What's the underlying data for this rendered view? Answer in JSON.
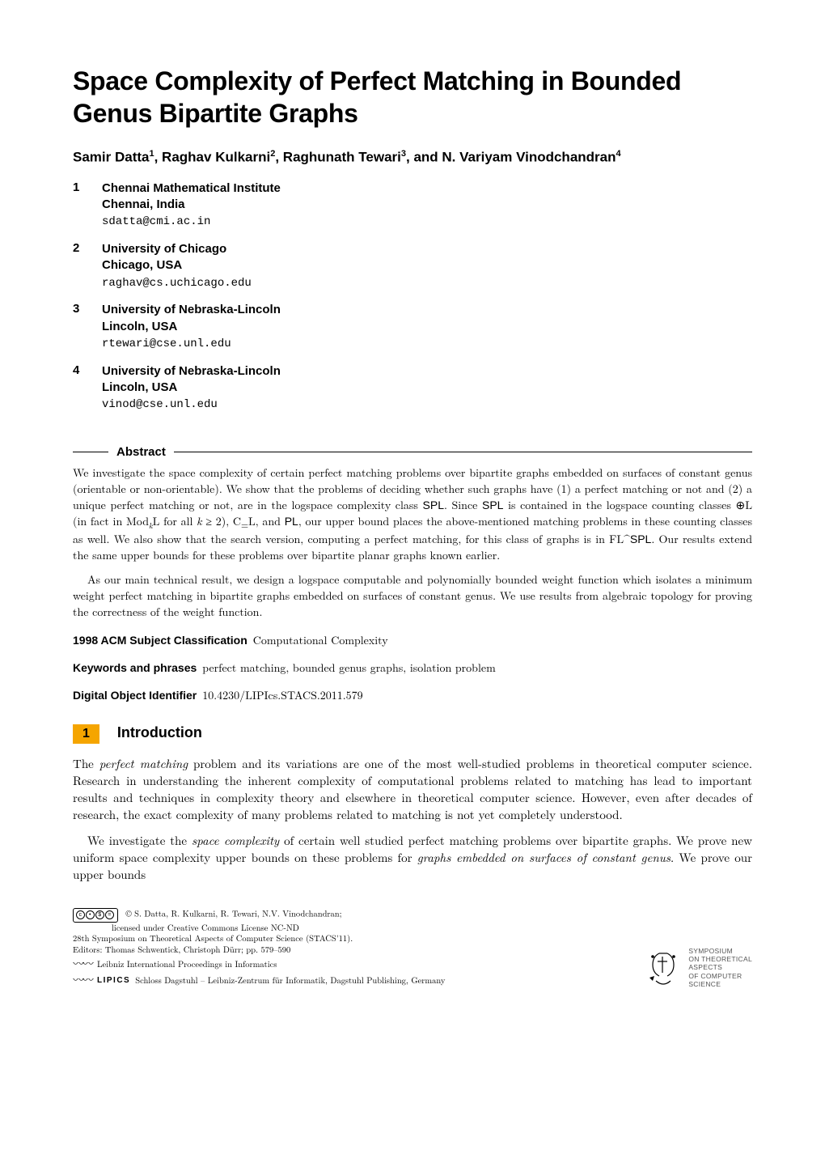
{
  "title": "Space Complexity of Perfect Matching in Bounded Genus Bipartite Graphs",
  "authors_html": "Samir Datta<sup>1</sup>, Raghav Kulkarni<sup>2</sup>, Raghunath Tewari<sup>3</sup>, and N. Variyam Vinodchandran<sup>4</sup>",
  "affils": [
    {
      "n": "1",
      "inst": "Chennai Mathematical Institute",
      "loc": "Chennai, India",
      "email": "sdatta@cmi.ac.in"
    },
    {
      "n": "2",
      "inst": "University of Chicago",
      "loc": "Chicago, USA",
      "email": "raghav@cs.uchicago.edu"
    },
    {
      "n": "3",
      "inst": "University of Nebraska-Lincoln",
      "loc": "Lincoln, USA",
      "email": "rtewari@cse.unl.edu"
    },
    {
      "n": "4",
      "inst": "University of Nebraska-Lincoln",
      "loc": "Lincoln, USA",
      "email": "vinod@cse.unl.edu"
    }
  ],
  "abstract_label": "Abstract",
  "abstract_p1": "We investigate the space complexity of certain perfect matching problems over bipartite graphs embedded on surfaces of constant genus (orientable or non-orientable). We show that the problems of deciding whether such graphs have (1) a perfect matching or not and (2) a unique perfect matching or not, are in the logspace complexity class SPL. Since SPL is contained in the logspace counting classes ⊕L (in fact in Mod_kL for all k ≥ 2), C=L, and PL, our upper bound places the above-mentioned matching problems in these counting classes as well. We also show that the search version, computing a perfect matching, for this class of graphs is in FL^SPL. Our results extend the same upper bounds for these problems over bipartite planar graphs known earlier.",
  "abstract_p2": "As our main technical result, we design a logspace computable and polynomially bounded weight function which isolates a minimum weight perfect matching in bipartite graphs embedded on surfaces of constant genus. We use results from algebraic topology for proving the correctness of the weight function.",
  "acm_label": "1998 ACM Subject Classification",
  "acm_value": "Computational Complexity",
  "keywords_label": "Keywords and phrases",
  "keywords_value": "perfect matching, bounded genus graphs, isolation problem",
  "doi_label": "Digital Object Identifier",
  "doi_value": "10.4230/LIPIcs.STACS.2011.579",
  "section_num": "1",
  "section_title": "Introduction",
  "body_p1": "The perfect matching problem and its variations are one of the most well-studied problems in theoretical computer science. Research in understanding the inherent complexity of computational problems related to matching has lead to important results and techniques in complexity theory and elsewhere in theoretical computer science. However, even after decades of research, the exact complexity of many problems related to matching is not yet completely understood.",
  "body_p2": "We investigate the space complexity of certain well studied perfect matching problems over bipartite graphs. We prove new uniform space complexity upper bounds on these problems for graphs embedded on surfaces of constant genus. We prove our upper bounds",
  "footer": {
    "copyright": "© S. Datta, R. Kulkarni, R. Tewari, N.V. Vinodchandran;",
    "license": "licensed under Creative Commons License NC-ND",
    "conf": "28th Symposium on Theoretical Aspects of Computer Science (STACS'11).",
    "editors": "Editors: Thomas Schwentick, Christoph Dürr; pp. 579–590",
    "series": "Leibniz International Proceedings in Informatics",
    "publisher": "Schloss Dagstuhl – Leibniz-Zentrum für Informatik, Dagstuhl Publishing, Germany",
    "lipics": "LIPICS",
    "logo_lines": [
      "SYMPOSIUM",
      "ON THEORETICAL",
      "ASPECTS",
      "OF COMPUTER",
      "SCIENCE"
    ]
  },
  "colors": {
    "section_bg": "#f5a500",
    "text": "#000000",
    "bg": "#ffffff",
    "logo_text": "#555555"
  }
}
